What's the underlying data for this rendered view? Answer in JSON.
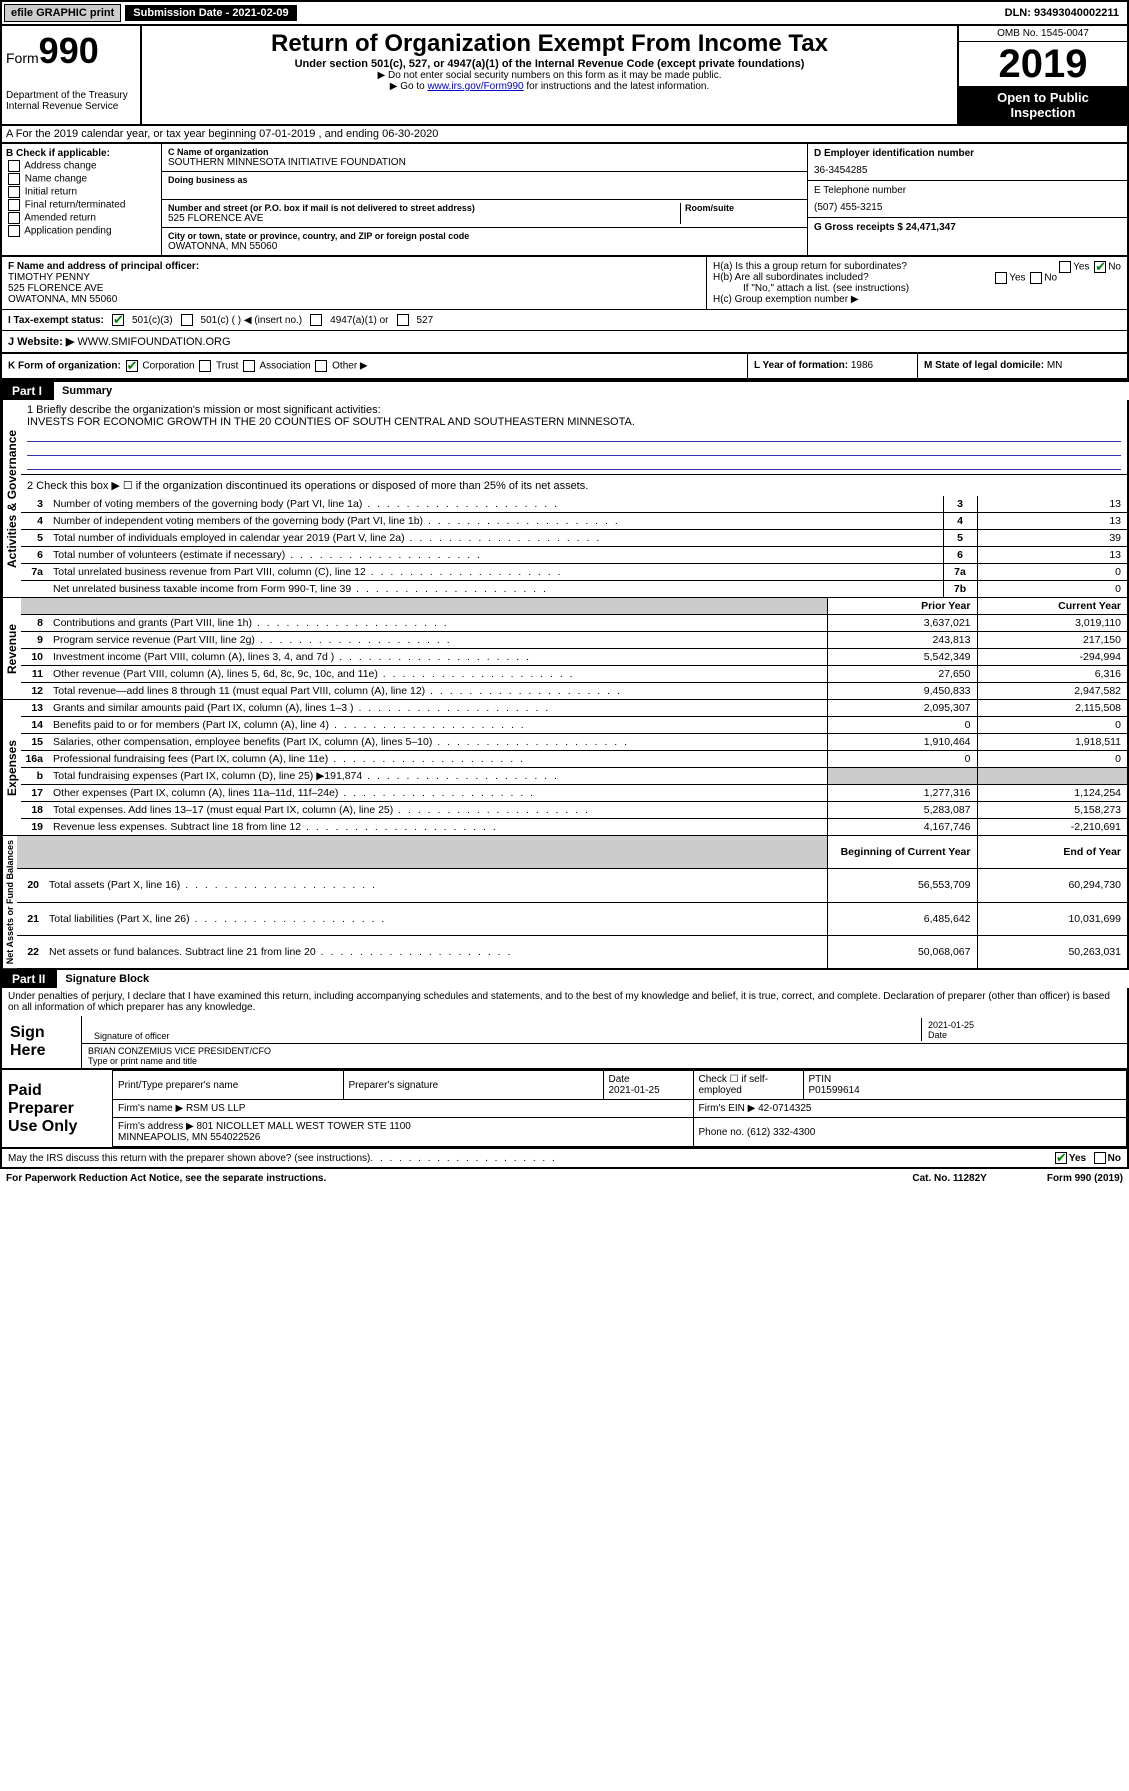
{
  "topbar": {
    "efile": "efile GRAPHIC print",
    "subdate_label": "Submission Date - 2021-02-09",
    "dln": "DLN: 93493040002211"
  },
  "header": {
    "form_prefix": "Form",
    "form_no": "990",
    "dept": "Department of the Treasury",
    "irs": "Internal Revenue Service",
    "title": "Return of Organization Exempt From Income Tax",
    "subtitle": "Under section 501(c), 527, or 4947(a)(1) of the Internal Revenue Code (except private foundations)",
    "note1": "▶ Do not enter social security numbers on this form as it may be made public.",
    "note2_pre": "▶ Go to ",
    "note2_link": "www.irs.gov/Form990",
    "note2_post": " for instructions and the latest information.",
    "omb": "OMB No. 1545-0047",
    "year": "2019",
    "open_pub": "Open to Public Inspection"
  },
  "row_a": "A  For the 2019 calendar year, or tax year beginning 07-01-2019    , and ending 06-30-2020",
  "section_b": {
    "title": "B Check if applicable:",
    "opts": [
      "Address change",
      "Name change",
      "Initial return",
      "Final return/terminated",
      "Amended return",
      "Application pending"
    ]
  },
  "section_c": {
    "lbl_name": "C Name of organization",
    "org_name": "SOUTHERN MINNESOTA INITIATIVE FOUNDATION",
    "dba_lbl": "Doing business as",
    "dba": "",
    "street_lbl": "Number and street (or P.O. box if mail is not delivered to street address)",
    "room_lbl": "Room/suite",
    "street": "525 FLORENCE AVE",
    "city_lbl": "City or town, state or province, country, and ZIP or foreign postal code",
    "city": "OWATONNA, MN  55060"
  },
  "section_d": {
    "lbl": "D Employer identification number",
    "ein": "36-3454285",
    "tel_lbl": "E Telephone number",
    "tel": "(507) 455-3215",
    "gross_lbl": "G Gross receipts $ 24,471,347"
  },
  "section_f": {
    "lbl": "F  Name and address of principal officer:",
    "name": "TIMOTHY PENNY",
    "addr1": "525 FLORENCE AVE",
    "addr2": "OWATONNA, MN  55060"
  },
  "section_h": {
    "ha": "H(a)  Is this a group return for subordinates?",
    "hb": "H(b)  Are all subordinates included?",
    "hb_note": "If \"No,\" attach a list. (see instructions)",
    "hc": "H(c)  Group exemption number ▶"
  },
  "row_i": {
    "lbl": "I    Tax-exempt status:",
    "o1": "501(c)(3)",
    "o2": "501(c) (   ) ◀ (insert no.)",
    "o3": "4947(a)(1) or",
    "o4": "527"
  },
  "row_j": {
    "lbl": "J   Website: ▶",
    "val": "WWW.SMIFOUNDATION.ORG"
  },
  "row_k": "K Form of organization:",
  "row_k_opts": [
    "Corporation",
    "Trust",
    "Association",
    "Other ▶"
  ],
  "row_l": {
    "lbl": "L Year of formation:",
    "val": "1986"
  },
  "row_m": {
    "lbl": "M State of legal domicile:",
    "val": "MN"
  },
  "part1": {
    "hdr": "Part I",
    "title": "Summary",
    "q1": "1   Briefly describe the organization's mission or most significant activities:",
    "mission": "INVESTS FOR ECONOMIC GROWTH IN THE 20 COUNTIES OF SOUTH CENTRAL AND SOUTHEASTERN MINNESOTA.",
    "q2": "2   Check this box ▶ ☐  if the organization discontinued its operations or disposed of more than 25% of its net assets.",
    "lines_gov": [
      {
        "n": "3",
        "t": "Number of voting members of the governing body (Part VI, line 1a)",
        "b": "3",
        "v": "13"
      },
      {
        "n": "4",
        "t": "Number of independent voting members of the governing body (Part VI, line 1b)",
        "b": "4",
        "v": "13"
      },
      {
        "n": "5",
        "t": "Total number of individuals employed in calendar year 2019 (Part V, line 2a)",
        "b": "5",
        "v": "39"
      },
      {
        "n": "6",
        "t": "Total number of volunteers (estimate if necessary)",
        "b": "6",
        "v": "13"
      },
      {
        "n": "7a",
        "t": "Total unrelated business revenue from Part VIII, column (C), line 12",
        "b": "7a",
        "v": "0"
      },
      {
        "n": "",
        "t": "Net unrelated business taxable income from Form 990-T, line 39",
        "b": "7b",
        "v": "0"
      }
    ],
    "hdr_prior": "Prior Year",
    "hdr_curr": "Current Year",
    "lines_rev": [
      {
        "n": "8",
        "t": "Contributions and grants (Part VIII, line 1h)",
        "p": "3,637,021",
        "c": "3,019,110"
      },
      {
        "n": "9",
        "t": "Program service revenue (Part VIII, line 2g)",
        "p": "243,813",
        "c": "217,150"
      },
      {
        "n": "10",
        "t": "Investment income (Part VIII, column (A), lines 3, 4, and 7d )",
        "p": "5,542,349",
        "c": "-294,994"
      },
      {
        "n": "11",
        "t": "Other revenue (Part VIII, column (A), lines 5, 6d, 8c, 9c, 10c, and 11e)",
        "p": "27,650",
        "c": "6,316"
      },
      {
        "n": "12",
        "t": "Total revenue—add lines 8 through 11 (must equal Part VIII, column (A), line 12)",
        "p": "9,450,833",
        "c": "2,947,582"
      }
    ],
    "lines_exp": [
      {
        "n": "13",
        "t": "Grants and similar amounts paid (Part IX, column (A), lines 1–3 )",
        "p": "2,095,307",
        "c": "2,115,508"
      },
      {
        "n": "14",
        "t": "Benefits paid to or for members (Part IX, column (A), line 4)",
        "p": "0",
        "c": "0"
      },
      {
        "n": "15",
        "t": "Salaries, other compensation, employee benefits (Part IX, column (A), lines 5–10)",
        "p": "1,910,464",
        "c": "1,918,511"
      },
      {
        "n": "16a",
        "t": "Professional fundraising fees (Part IX, column (A), line 11e)",
        "p": "0",
        "c": "0"
      },
      {
        "n": "b",
        "t": "Total fundraising expenses (Part IX, column (D), line 25) ▶191,874",
        "p": "",
        "c": "",
        "shade": true
      },
      {
        "n": "17",
        "t": "Other expenses (Part IX, column (A), lines 11a–11d, 11f–24e)",
        "p": "1,277,316",
        "c": "1,124,254"
      },
      {
        "n": "18",
        "t": "Total expenses. Add lines 13–17 (must equal Part IX, column (A), line 25)",
        "p": "5,283,087",
        "c": "5,158,273"
      },
      {
        "n": "19",
        "t": "Revenue less expenses. Subtract line 18 from line 12",
        "p": "4,167,746",
        "c": "-2,210,691"
      }
    ],
    "hdr_bcy": "Beginning of Current Year",
    "hdr_eoy": "End of Year",
    "lines_na": [
      {
        "n": "20",
        "t": "Total assets (Part X, line 16)",
        "p": "56,553,709",
        "c": "60,294,730"
      },
      {
        "n": "21",
        "t": "Total liabilities (Part X, line 26)",
        "p": "6,485,642",
        "c": "10,031,699"
      },
      {
        "n": "22",
        "t": "Net assets or fund balances. Subtract line 21 from line 20",
        "p": "50,068,067",
        "c": "50,263,031"
      }
    ]
  },
  "vert_labels": {
    "gov": "Activities & Governance",
    "rev": "Revenue",
    "exp": "Expenses",
    "na": "Net Assets or Fund Balances"
  },
  "part2": {
    "hdr": "Part II",
    "title": "Signature Block",
    "perjury": "Under penalties of perjury, I declare that I have examined this return, including accompanying schedules and statements, and to the best of my knowledge and belief, it is true, correct, and complete. Declaration of preparer (other than officer) is based on all information of which preparer has any knowledge.",
    "sign_here": "Sign Here",
    "sig_officer_lbl": "Signature of officer",
    "sig_date": "2021-01-25",
    "date_lbl": "Date",
    "officer_name": "BRIAN CONZEMIUS  VICE PRESIDENT/CFO",
    "officer_lbl": "Type or print name and title",
    "paid_prep": "Paid Preparer Use Only",
    "prep_name_lbl": "Print/Type preparer's name",
    "prep_sig_lbl": "Preparer's signature",
    "prep_date_lbl": "Date",
    "prep_date": "2021-01-25",
    "prep_check_lbl": "Check ☐ if self-employed",
    "ptin_lbl": "PTIN",
    "ptin": "P01599614",
    "firm_name_lbl": "Firm's name    ▶",
    "firm_name": "RSM US LLP",
    "firm_ein_lbl": "Firm's EIN ▶",
    "firm_ein": "42-0714325",
    "firm_addr_lbl": "Firm's address ▶",
    "firm_addr": "801 NICOLLET MALL WEST TOWER STE 1100\nMINNEAPOLIS, MN  554022526",
    "phone_lbl": "Phone no.",
    "phone": "(612) 332-4300",
    "discuss": "May the IRS discuss this return with the preparer shown above? (see instructions)",
    "yes": "Yes",
    "no": "No"
  },
  "footer": {
    "pra": "For Paperwork Reduction Act Notice, see the separate instructions.",
    "cat": "Cat. No. 11282Y",
    "form": "Form 990 (2019)"
  }
}
